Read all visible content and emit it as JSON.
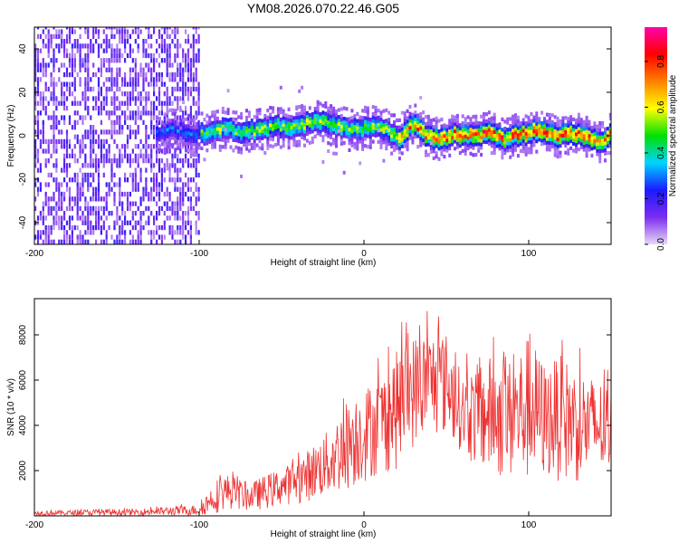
{
  "chart_data": [
    {
      "type": "heatmap",
      "title": "YM08.2026.070.22.46.G05",
      "xlabel": "Height of straight line (km)",
      "ylabel": "Frequency (Hz)",
      "xlim": [
        -200,
        150
      ],
      "ylim": [
        -50,
        50
      ],
      "x_ticks": [
        -200,
        -100,
        0,
        100
      ],
      "y_ticks": [
        -40,
        -20,
        0,
        20,
        40
      ],
      "colorbar": {
        "label": "Normalized spectral amplitude",
        "range": [
          0,
          0.95
        ],
        "ticks": [
          0.0,
          0.2,
          0.4,
          0.6,
          0.8
        ],
        "colors": [
          "#e8d8f4",
          "#7b2cf0",
          "#1a1aff",
          "#00d4ff",
          "#00e000",
          "#ffff00",
          "#ff8000",
          "#ff0000",
          "#ff00aa"
        ]
      },
      "ridge": {
        "x": [
          -125,
          -115,
          -105,
          -95,
          -85,
          -75,
          -65,
          -55,
          -45,
          -35,
          -25,
          -15,
          -5,
          5,
          15,
          22,
          28,
          35,
          45,
          55,
          65,
          75,
          85,
          95,
          105,
          115,
          125,
          135,
          145,
          150
        ],
        "y": [
          1,
          2,
          0,
          1,
          3,
          1,
          2,
          4,
          3,
          5,
          6,
          3,
          2,
          4,
          1,
          -2,
          5,
          1,
          -3,
          0,
          -1,
          1,
          -2,
          0,
          2,
          -1,
          1,
          -2,
          -4,
          1
        ]
      }
    },
    {
      "type": "line",
      "xlabel": "Height of straight line (km)",
      "ylabel": "SNR (10 * v/v)",
      "xlim": [
        -200,
        150
      ],
      "ylim": [
        0,
        9600
      ],
      "x_ticks": [
        -200,
        -100,
        0,
        100
      ],
      "y_ticks": [
        2000,
        4000,
        6000,
        8000
      ],
      "series": [
        {
          "name": "SNR",
          "color": "#ee3333",
          "x": [
            -200,
            -180,
            -160,
            -140,
            -120,
            -110,
            -100,
            -90,
            -85,
            -80,
            -70,
            -60,
            -50,
            -40,
            -30,
            -20,
            -10,
            0,
            10,
            20,
            30,
            40,
            50,
            60,
            70,
            80,
            90,
            100,
            110,
            120,
            130,
            140,
            150
          ],
          "lower": [
            0,
            0,
            0,
            0,
            0,
            0,
            0,
            100,
            250,
            300,
            200,
            300,
            450,
            550,
            700,
            800,
            1100,
            1450,
            1800,
            2000,
            3000,
            3500,
            3500,
            2800,
            1800,
            1600,
            1500,
            1400,
            1600,
            1500,
            1400,
            1600,
            1800
          ],
          "upper": [
            250,
            250,
            300,
            300,
            400,
            450,
            500,
            1600,
            1850,
            1800,
            1400,
            1800,
            2100,
            2500,
            3200,
            3900,
            5200,
            5700,
            6200,
            7300,
            8000,
            8200,
            8100,
            6200,
            6800,
            7200,
            6900,
            8000,
            6700,
            7100,
            6500,
            6100,
            5800
          ]
        }
      ]
    }
  ]
}
